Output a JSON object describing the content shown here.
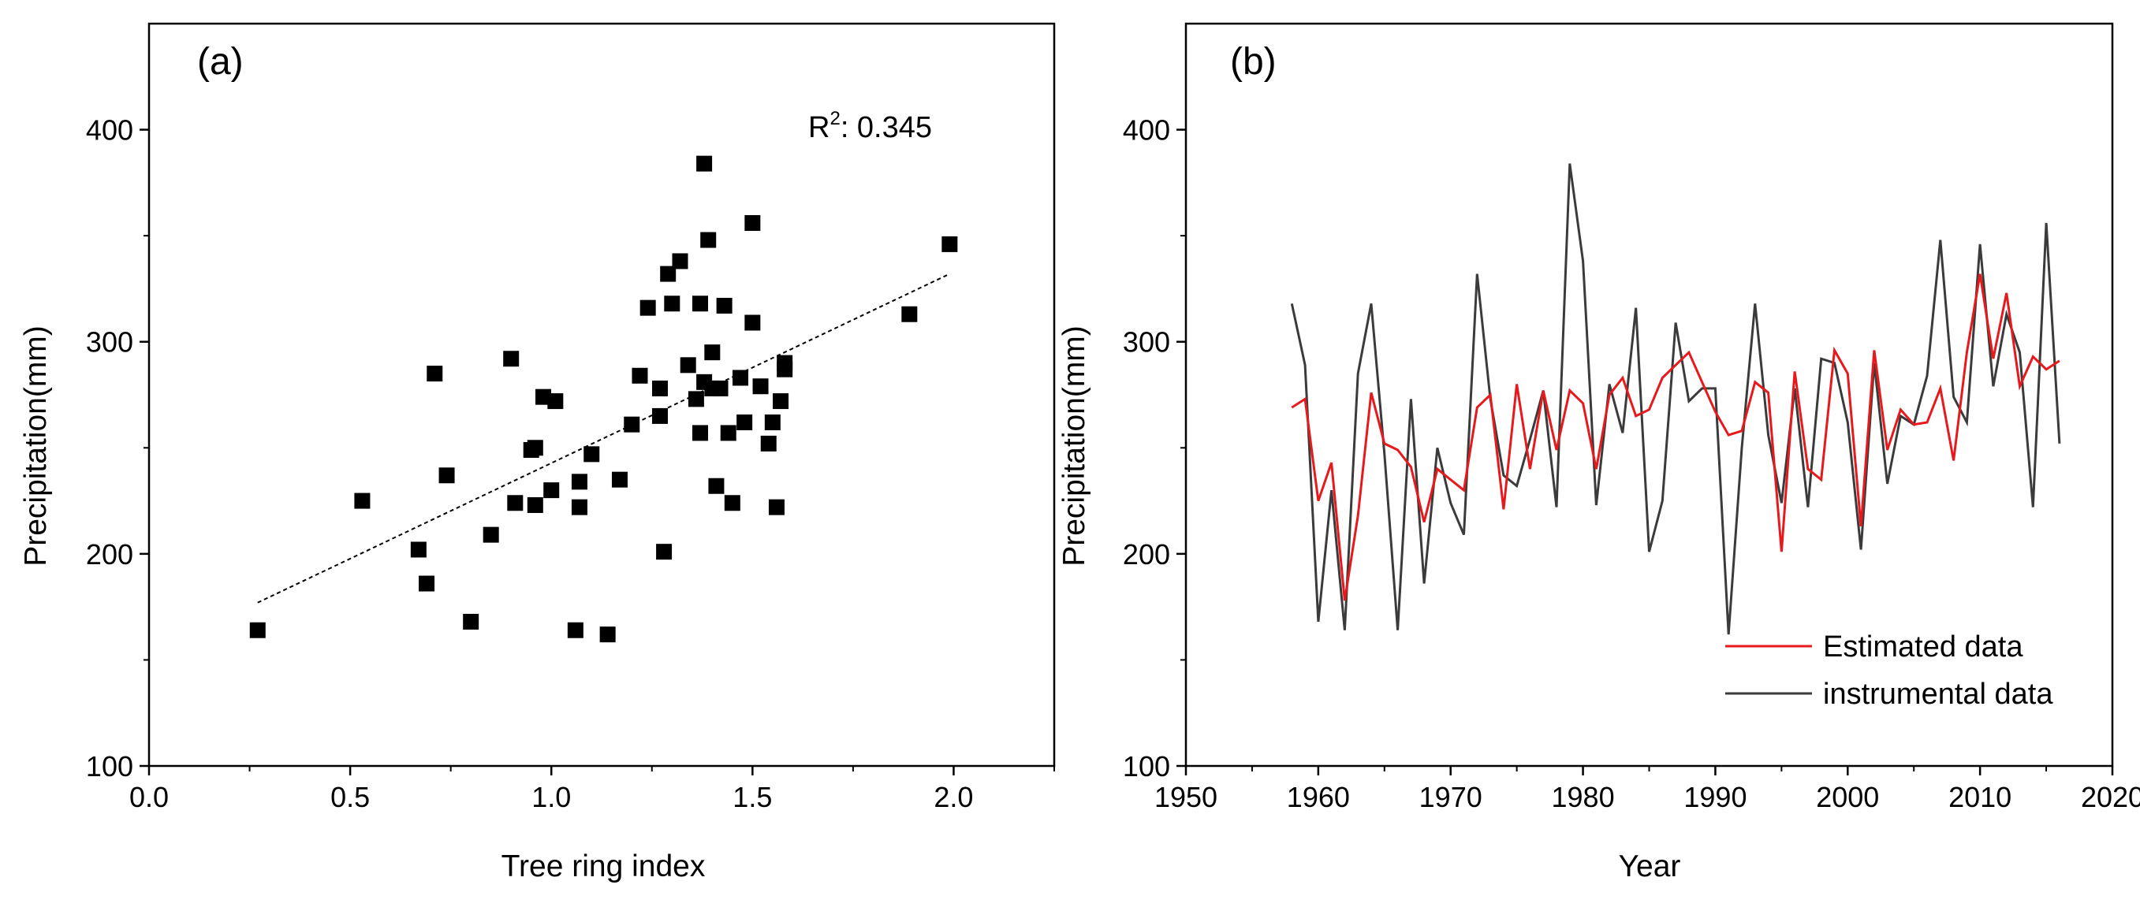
{
  "chart_data": [
    {
      "type": "scatter",
      "panel_label": "(a)",
      "xlabel": "Tree ring index",
      "ylabel": "Precipitation(mm)",
      "xlim": [
        0.0,
        2.25
      ],
      "ylim": [
        100,
        450
      ],
      "xticks": [
        0.0,
        0.5,
        1.0,
        1.5,
        2.0
      ],
      "xtick_labels": [
        "0.0",
        "0.5",
        "1.0",
        "1.5",
        "2.0"
      ],
      "yticks": [
        100,
        200,
        300,
        400
      ],
      "ytick_labels": [
        "100",
        "200",
        "300",
        "400"
      ],
      "annotation": {
        "label": "R",
        "sup": "2",
        "value": ": 0.345"
      },
      "trendline": {
        "x": [
          0.27,
          1.99
        ],
        "y": [
          177,
          332
        ]
      },
      "points": [
        [
          0.27,
          164
        ],
        [
          0.53,
          225
        ],
        [
          0.67,
          202
        ],
        [
          0.69,
          186
        ],
        [
          0.71,
          285
        ],
        [
          0.74,
          237
        ],
        [
          0.8,
          168
        ],
        [
          0.85,
          209
        ],
        [
          0.9,
          292
        ],
        [
          0.91,
          224
        ],
        [
          0.95,
          249
        ],
        [
          0.96,
          223
        ],
        [
          0.96,
          250
        ],
        [
          0.98,
          274
        ],
        [
          1.0,
          230
        ],
        [
          1.01,
          272
        ],
        [
          1.06,
          164
        ],
        [
          1.07,
          234
        ],
        [
          1.07,
          222
        ],
        [
          1.1,
          247
        ],
        [
          1.14,
          162
        ],
        [
          1.17,
          235
        ],
        [
          1.2,
          261
        ],
        [
          1.22,
          284
        ],
        [
          1.24,
          316
        ],
        [
          1.27,
          278
        ],
        [
          1.27,
          265
        ],
        [
          1.28,
          201
        ],
        [
          1.29,
          332
        ],
        [
          1.3,
          318
        ],
        [
          1.32,
          338
        ],
        [
          1.34,
          289
        ],
        [
          1.36,
          273
        ],
        [
          1.37,
          318
        ],
        [
          1.37,
          257
        ],
        [
          1.38,
          281
        ],
        [
          1.38,
          384
        ],
        [
          1.39,
          348
        ],
        [
          1.4,
          295
        ],
        [
          1.4,
          278
        ],
        [
          1.41,
          232
        ],
        [
          1.42,
          278
        ],
        [
          1.43,
          317
        ],
        [
          1.44,
          257
        ],
        [
          1.45,
          224
        ],
        [
          1.47,
          283
        ],
        [
          1.48,
          262
        ],
        [
          1.5,
          356
        ],
        [
          1.5,
          309
        ],
        [
          1.52,
          279
        ],
        [
          1.54,
          252
        ],
        [
          1.55,
          262
        ],
        [
          1.56,
          222
        ],
        [
          1.57,
          272
        ],
        [
          1.58,
          290
        ],
        [
          1.58,
          287
        ],
        [
          1.89,
          313
        ],
        [
          1.99,
          346
        ]
      ]
    },
    {
      "type": "line",
      "panel_label": "(b)",
      "xlabel": "Year",
      "ylabel": "Precipitation(mm)",
      "xlim": [
        1950,
        2020
      ],
      "ylim": [
        100,
        450
      ],
      "xticks": [
        1950,
        1960,
        1970,
        1980,
        1990,
        2000,
        2010,
        2020
      ],
      "xtick_labels": [
        "1950",
        "1960",
        "1970",
        "1980",
        "1990",
        "2000",
        "2010",
        "2020"
      ],
      "yticks": [
        100,
        200,
        300,
        400
      ],
      "ytick_labels": [
        "100",
        "200",
        "300",
        "400"
      ],
      "legend_position": "bottom-right",
      "x": [
        1958,
        1959,
        1960,
        1961,
        1962,
        1963,
        1964,
        1965,
        1966,
        1967,
        1968,
        1969,
        1970,
        1971,
        1972,
        1973,
        1974,
        1975,
        1976,
        1977,
        1978,
        1979,
        1980,
        1981,
        1982,
        1983,
        1984,
        1985,
        1986,
        1987,
        1988,
        1989,
        1990,
        1991,
        1992,
        1993,
        1994,
        1995,
        1996,
        1997,
        1998,
        1999,
        2000,
        2001,
        2002,
        2003,
        2004,
        2005,
        2006,
        2007,
        2008,
        2009,
        2010,
        2011,
        2012,
        2013,
        2014,
        2015,
        2016
      ],
      "series": [
        {
          "name": "Estimated data",
          "color": "#e8191c",
          "values": [
            269,
            273,
            225,
            243,
            178,
            218,
            276,
            252,
            249,
            241,
            215,
            240,
            235,
            230,
            269,
            275,
            221,
            280,
            240,
            277,
            249,
            277,
            271,
            240,
            275,
            283,
            265,
            268,
            283,
            289,
            295,
            281,
            267,
            256,
            258,
            281,
            276,
            201,
            286,
            240,
            235,
            296,
            285,
            213,
            296,
            249,
            268,
            261,
            262,
            278,
            244,
            295,
            332,
            292,
            323,
            279,
            293,
            287,
            291
          ]
        },
        {
          "name": "instrumental data",
          "color": "#3b3b3b",
          "values": [
            318,
            289,
            168,
            230,
            164,
            285,
            318,
            247,
            164,
            273,
            186,
            250,
            224,
            209,
            332,
            273,
            237,
            232,
            254,
            277,
            222,
            384,
            338,
            223,
            280,
            257,
            316,
            201,
            225,
            309,
            272,
            278,
            278,
            162,
            250,
            318,
            256,
            224,
            278,
            222,
            292,
            290,
            262,
            202,
            290,
            233,
            265,
            261,
            284,
            348,
            274,
            262,
            346,
            279,
            313,
            295,
            222,
            356,
            252
          ]
        }
      ]
    }
  ]
}
